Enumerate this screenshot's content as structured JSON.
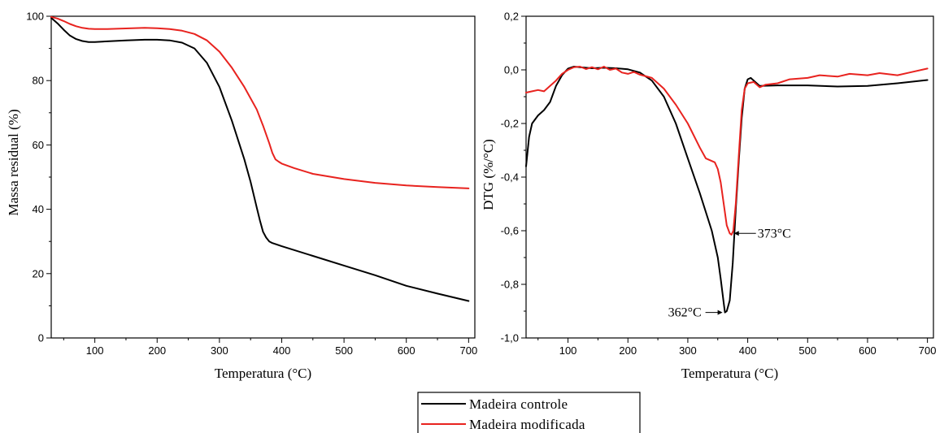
{
  "chart_data": [
    {
      "type": "line",
      "xlabel": "Temperatura (°C)",
      "ylabel": "Massa residual (%)",
      "xlim": [
        30,
        710
      ],
      "ylim": [
        0,
        100
      ],
      "xticks": [
        100,
        200,
        300,
        400,
        500,
        600,
        700
      ],
      "yticks": [
        0,
        20,
        40,
        60,
        80,
        100
      ],
      "ytick_labels": [
        "0",
        "20",
        "40",
        "60",
        "80",
        "100"
      ],
      "series": [
        {
          "name": "Madeira controle",
          "color": "#000000",
          "x": [
            30,
            40,
            50,
            60,
            70,
            80,
            90,
            100,
            120,
            150,
            180,
            200,
            220,
            240,
            260,
            280,
            300,
            320,
            340,
            350,
            360,
            365,
            370,
            375,
            380,
            385,
            390,
            400,
            450,
            500,
            550,
            600,
            650,
            700
          ],
          "y": [
            99.5,
            97.8,
            95.8,
            94.0,
            92.9,
            92.3,
            92.0,
            92.0,
            92.2,
            92.5,
            92.7,
            92.7,
            92.5,
            91.8,
            90.0,
            85.5,
            78.0,
            67.5,
            55.5,
            48.5,
            40.5,
            36.5,
            33.0,
            31.2,
            30.0,
            29.5,
            29.2,
            28.5,
            25.5,
            22.5,
            19.5,
            16.2,
            13.8,
            11.5
          ]
        },
        {
          "name": "Madeira modificada",
          "color": "#e8231f",
          "x": [
            30,
            40,
            50,
            60,
            70,
            80,
            90,
            100,
            120,
            150,
            180,
            200,
            220,
            240,
            260,
            280,
            300,
            320,
            340,
            360,
            370,
            380,
            385,
            390,
            395,
            400,
            420,
            450,
            500,
            550,
            600,
            650,
            700
          ],
          "y": [
            99.8,
            99.3,
            98.5,
            97.6,
            96.9,
            96.4,
            96.1,
            96.0,
            96.0,
            96.2,
            96.4,
            96.3,
            96.0,
            95.5,
            94.5,
            92.5,
            89.0,
            84.0,
            78.0,
            71.0,
            66.0,
            60.5,
            57.5,
            55.5,
            54.8,
            54.2,
            52.8,
            51.0,
            49.4,
            48.2,
            47.4,
            46.9,
            46.5
          ]
        }
      ]
    },
    {
      "type": "line",
      "xlabel": "Temperatura (°C)",
      "ylabel": "DTG (%/°C)",
      "xlim": [
        30,
        710
      ],
      "ylim": [
        -1.0,
        0.2
      ],
      "xticks": [
        100,
        200,
        300,
        400,
        500,
        600,
        700
      ],
      "yticks": [
        -1.0,
        -0.8,
        -0.6,
        -0.4,
        -0.2,
        0.0,
        0.2
      ],
      "ytick_labels": [
        "-1,0",
        "-0,8",
        "-0,6",
        "-0,4",
        "-0,2",
        "0,0",
        "0,2"
      ],
      "annotations": [
        {
          "text": "362°C",
          "x": 362,
          "y": -0.905
        },
        {
          "text": "373°C",
          "x": 373,
          "y": -0.61
        }
      ],
      "series": [
        {
          "name": "Madeira controle",
          "color": "#000000",
          "x": [
            30,
            35,
            40,
            50,
            60,
            70,
            80,
            90,
            100,
            110,
            120,
            140,
            160,
            180,
            200,
            220,
            240,
            260,
            280,
            300,
            320,
            340,
            350,
            355,
            360,
            362,
            365,
            370,
            375,
            380,
            385,
            390,
            395,
            400,
            405,
            410,
            420,
            450,
            500,
            550,
            600,
            650,
            700
          ],
          "y": [
            -0.36,
            -0.25,
            -0.2,
            -0.17,
            -0.15,
            -0.12,
            -0.06,
            -0.02,
            0.005,
            0.012,
            0.01,
            0.006,
            0.008,
            0.006,
            0.002,
            -0.01,
            -0.04,
            -0.1,
            -0.2,
            -0.33,
            -0.46,
            -0.6,
            -0.7,
            -0.78,
            -0.87,
            -0.905,
            -0.9,
            -0.86,
            -0.72,
            -0.52,
            -0.34,
            -0.18,
            -0.07,
            -0.035,
            -0.03,
            -0.04,
            -0.06,
            -0.058,
            -0.058,
            -0.062,
            -0.06,
            -0.05,
            -0.038
          ]
        },
        {
          "name": "Madeira modificada",
          "color": "#e8231f",
          "x": [
            30,
            40,
            50,
            60,
            70,
            80,
            90,
            100,
            110,
            120,
            130,
            140,
            150,
            160,
            170,
            180,
            190,
            200,
            210,
            220,
            240,
            260,
            280,
            300,
            320,
            330,
            340,
            345,
            350,
            355,
            360,
            365,
            370,
            373,
            376,
            380,
            385,
            390,
            395,
            400,
            410,
            420,
            430,
            450,
            470,
            500,
            520,
            550,
            570,
            600,
            620,
            650,
            670,
            700
          ],
          "y": [
            -0.085,
            -0.08,
            -0.075,
            -0.08,
            -0.06,
            -0.04,
            -0.015,
            0.0,
            0.01,
            0.012,
            0.003,
            0.01,
            0.002,
            0.012,
            0.0,
            0.005,
            -0.01,
            -0.015,
            -0.008,
            -0.018,
            -0.03,
            -0.07,
            -0.13,
            -0.2,
            -0.29,
            -0.33,
            -0.34,
            -0.345,
            -0.37,
            -0.42,
            -0.5,
            -0.58,
            -0.61,
            -0.615,
            -0.6,
            -0.5,
            -0.32,
            -0.15,
            -0.07,
            -0.05,
            -0.045,
            -0.065,
            -0.055,
            -0.05,
            -0.035,
            -0.03,
            -0.02,
            -0.025,
            -0.015,
            -0.02,
            -0.012,
            -0.02,
            -0.01,
            0.005
          ]
        }
      ]
    }
  ],
  "legend": {
    "items": [
      {
        "label": "Madeira controle",
        "color": "#000000"
      },
      {
        "label": "Madeira modificada",
        "color": "#e8231f"
      }
    ]
  }
}
